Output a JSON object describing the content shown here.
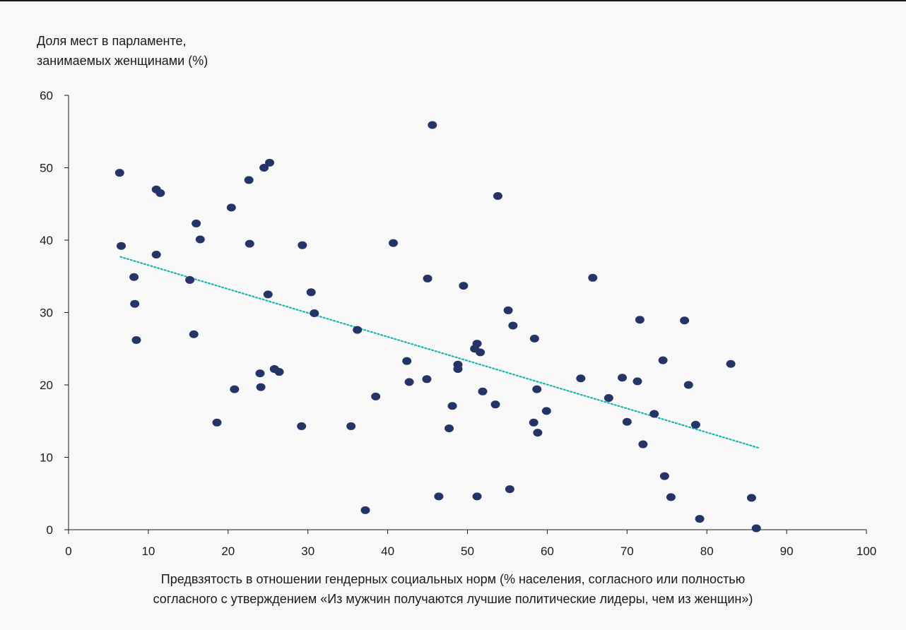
{
  "chart_data": {
    "type": "scatter",
    "ylabel_lines": [
      "Доля мест в парламенте,",
      "занимаемых женщинами (%)"
    ],
    "xlabel_lines": [
      "Предвзятость в отношении гендерных социальных норм (% населения, согласного или полностью",
      "согласного с утверждением «Из мужчин получаются лучшие политические лидеры, чем из женщин»)"
    ],
    "xlim": [
      0,
      100
    ],
    "ylim": [
      0,
      60
    ],
    "xticks": [
      0,
      10,
      20,
      30,
      40,
      50,
      60,
      70,
      80,
      90,
      100
    ],
    "yticks": [
      0,
      10,
      20,
      30,
      40,
      50,
      60
    ],
    "grid": false,
    "colors": {
      "points": "#253466",
      "trend": "#1ab5b0",
      "axis": "#1a1a1a"
    },
    "points": [
      [
        6.4,
        49.3
      ],
      [
        6.6,
        39.2
      ],
      [
        8.2,
        34.9
      ],
      [
        8.3,
        31.2
      ],
      [
        8.5,
        26.2
      ],
      [
        11.0,
        47.0
      ],
      [
        11.5,
        46.5
      ],
      [
        11.0,
        38.0
      ],
      [
        15.2,
        34.5
      ],
      [
        15.7,
        27.0
      ],
      [
        16.0,
        42.3
      ],
      [
        16.5,
        40.1
      ],
      [
        18.6,
        14.8
      ],
      [
        20.4,
        44.5
      ],
      [
        20.8,
        19.4
      ],
      [
        22.6,
        48.3
      ],
      [
        22.7,
        39.5
      ],
      [
        24.0,
        21.6
      ],
      [
        24.1,
        19.7
      ],
      [
        24.5,
        50.0
      ],
      [
        25.0,
        32.5
      ],
      [
        25.2,
        50.7
      ],
      [
        25.8,
        22.2
      ],
      [
        26.4,
        21.8
      ],
      [
        29.3,
        39.3
      ],
      [
        29.2,
        14.3
      ],
      [
        30.4,
        32.8
      ],
      [
        30.8,
        29.9
      ],
      [
        35.4,
        14.3
      ],
      [
        36.2,
        27.6
      ],
      [
        37.2,
        2.7
      ],
      [
        38.5,
        18.4
      ],
      [
        40.7,
        39.6
      ],
      [
        42.4,
        23.3
      ],
      [
        42.7,
        20.4
      ],
      [
        44.9,
        20.8
      ],
      [
        45.0,
        34.7
      ],
      [
        45.6,
        55.9
      ],
      [
        46.4,
        4.6
      ],
      [
        47.7,
        14.0
      ],
      [
        48.1,
        17.1
      ],
      [
        48.8,
        22.8
      ],
      [
        48.8,
        22.2
      ],
      [
        49.5,
        33.7
      ],
      [
        50.9,
        25.0
      ],
      [
        51.2,
        25.7
      ],
      [
        51.2,
        4.6
      ],
      [
        51.6,
        24.5
      ],
      [
        51.9,
        19.1
      ],
      [
        53.5,
        17.3
      ],
      [
        53.8,
        46.1
      ],
      [
        55.1,
        30.3
      ],
      [
        55.3,
        5.6
      ],
      [
        55.7,
        28.2
      ],
      [
        58.3,
        14.8
      ],
      [
        58.4,
        26.4
      ],
      [
        58.7,
        19.4
      ],
      [
        58.8,
        13.4
      ],
      [
        59.9,
        16.4
      ],
      [
        64.2,
        20.9
      ],
      [
        65.7,
        34.8
      ],
      [
        67.7,
        18.2
      ],
      [
        69.4,
        21.0
      ],
      [
        70.0,
        14.9
      ],
      [
        71.3,
        20.5
      ],
      [
        71.6,
        29.0
      ],
      [
        72.0,
        11.8
      ],
      [
        73.4,
        16.0
      ],
      [
        74.5,
        23.4
      ],
      [
        74.7,
        7.4
      ],
      [
        75.5,
        4.5
      ],
      [
        77.2,
        28.9
      ],
      [
        77.7,
        20.0
      ],
      [
        78.6,
        14.5
      ],
      [
        79.1,
        1.5
      ],
      [
        83.0,
        22.9
      ],
      [
        85.6,
        4.4
      ],
      [
        86.2,
        0.2
      ]
    ],
    "trendline": {
      "style": "dotted",
      "from": [
        6.5,
        37.7
      ],
      "to": [
        86.5,
        11.3
      ]
    }
  }
}
